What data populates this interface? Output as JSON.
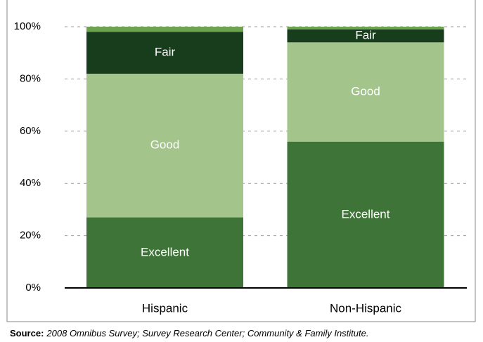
{
  "chart_data": {
    "type": "stacked_bar",
    "categories": [
      "Hispanic",
      "Non-Hispanic"
    ],
    "series": [
      {
        "name": "Excellent",
        "color": "#3f7438",
        "values": [
          27,
          56
        ]
      },
      {
        "name": "Good",
        "color": "#a3c48a",
        "values": [
          55,
          38
        ]
      },
      {
        "name": "Fair",
        "color": "#173d1c",
        "values": [
          16,
          5
        ]
      },
      {
        "name": null,
        "color": "#6da251",
        "values": [
          2,
          1
        ]
      }
    ],
    "ylim": [
      0,
      100
    ],
    "yticks": [
      {
        "value": 0,
        "label": "0%"
      },
      {
        "value": 20,
        "label": "20%"
      },
      {
        "value": 40,
        "label": "40%"
      },
      {
        "value": 60,
        "label": "60%"
      },
      {
        "value": 80,
        "label": "80%"
      },
      {
        "value": 100,
        "label": "100%"
      }
    ],
    "grid": true,
    "source_label": "Source:",
    "source": "2008 Omnibus Survey; Survey Research Center; Community & Family Institute."
  }
}
